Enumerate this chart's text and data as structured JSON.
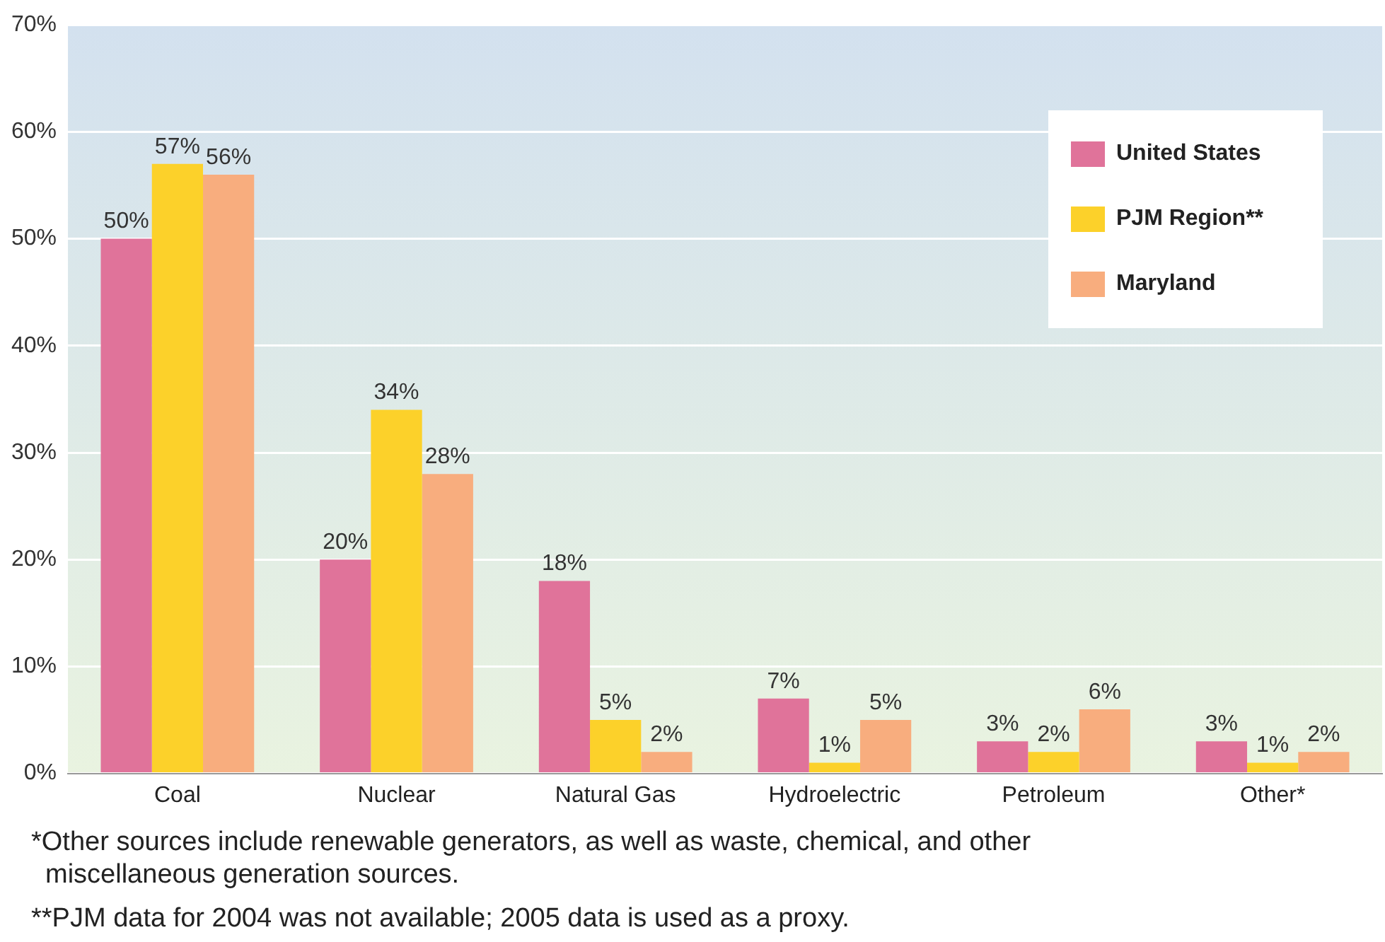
{
  "chart_data": {
    "type": "bar",
    "categories": [
      "Coal",
      "Nuclear",
      "Natural Gas",
      "Hydroelectric",
      "Petroleum",
      "Other*"
    ],
    "series": [
      {
        "name": "United States",
        "color": "#e0739a",
        "values": [
          50,
          20,
          18,
          7,
          3,
          3
        ],
        "value_labels": [
          "50%",
          "20%",
          "18%",
          "7%",
          "3%",
          "3%"
        ]
      },
      {
        "name": "PJM Region**",
        "color": "#fcd12a",
        "values": [
          57,
          34,
          5,
          1,
          2,
          1
        ],
        "value_labels": [
          "57%",
          "34%",
          "5%",
          "1%",
          "2%",
          "1%"
        ]
      },
      {
        "name": "Maryland",
        "color": "#f8ad7e",
        "values": [
          56,
          28,
          2,
          5,
          6,
          2
        ],
        "value_labels": [
          "56%",
          "28%",
          "2%",
          "5%",
          "6%",
          "2%"
        ]
      }
    ],
    "ylim": [
      0,
      70
    ],
    "yticks": [
      {
        "value": 0,
        "label": "0%"
      },
      {
        "value": 10,
        "label": "10%"
      },
      {
        "value": 20,
        "label": "20%"
      },
      {
        "value": 30,
        "label": "30%"
      },
      {
        "value": 40,
        "label": "40%"
      },
      {
        "value": 50,
        "label": "50%"
      },
      {
        "value": 60,
        "label": "60%"
      },
      {
        "value": 70,
        "label": "70%"
      }
    ],
    "grid": "y",
    "legend": "top right",
    "annotations": [
      "*Other sources include renewable generators, as well as waste, chemical, and other miscellaneous generation sources.",
      "**PJM data for 2004 was not available; 2005 data is used as a proxy."
    ]
  }
}
